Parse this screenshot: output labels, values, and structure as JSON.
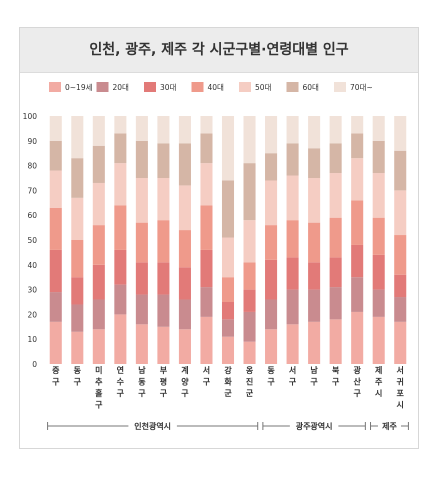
{
  "chart_data": {
    "type": "bar",
    "stacked": true,
    "title": "인천, 광주, 제주 각 시군구별·연령대별 인구",
    "ylim": [
      0,
      100
    ],
    "yticks": [
      0,
      10,
      20,
      30,
      40,
      50,
      60,
      70,
      80,
      90,
      100
    ],
    "grid": false,
    "legend_position": "top",
    "categories": [
      "중구",
      "동구",
      "미추홀구",
      "연수구",
      "남동구",
      "부평구",
      "계양구",
      "서구",
      "강화군",
      "옹진군",
      "동구",
      "서구",
      "남구",
      "북구",
      "광산구",
      "제주시",
      "서귀포시"
    ],
    "groups": [
      {
        "name": "인천광역시",
        "start": 0,
        "end": 9
      },
      {
        "name": "광주광역시",
        "start": 10,
        "end": 14
      },
      {
        "name": "제주",
        "start": 15,
        "end": 16
      }
    ],
    "series": [
      {
        "name": "0~19세",
        "color": "#f2aba3",
        "values": [
          17,
          13,
          14,
          20,
          16,
          15,
          14,
          19,
          11,
          9,
          14,
          16,
          17,
          18,
          21,
          19,
          17
        ]
      },
      {
        "name": "20대",
        "color": "#c98b8f",
        "values": [
          12,
          11,
          12,
          12,
          12,
          13,
          12,
          12,
          7,
          12,
          12,
          14,
          13,
          13,
          14,
          11,
          10
        ]
      },
      {
        "name": "30대",
        "color": "#e27a78",
        "values": [
          17,
          11,
          14,
          14,
          13,
          13,
          13,
          15,
          7,
          9,
          16,
          13,
          11,
          12,
          13,
          14,
          9
        ]
      },
      {
        "name": "40대",
        "color": "#ef9a8b",
        "values": [
          17,
          15,
          16,
          18,
          16,
          17,
          15,
          18,
          10,
          11,
          14,
          15,
          16,
          16,
          18,
          15,
          16
        ]
      },
      {
        "name": "50대",
        "color": "#f5cdc3",
        "values": [
          15,
          17,
          17,
          17,
          18,
          17,
          18,
          17,
          16,
          17,
          18,
          18,
          18,
          18,
          17,
          18,
          18
        ]
      },
      {
        "name": "60대",
        "color": "#d5b6a6",
        "values": [
          12,
          16,
          15,
          12,
          15,
          14,
          17,
          12,
          23,
          23,
          11,
          13,
          12,
          12,
          10,
          13,
          16
        ]
      },
      {
        "name": "70대~",
        "color": "#f1e2d9",
        "values": [
          10,
          17,
          12,
          7,
          10,
          11,
          11,
          7,
          26,
          19,
          15,
          11,
          13,
          11,
          7,
          10,
          14
        ]
      }
    ]
  }
}
